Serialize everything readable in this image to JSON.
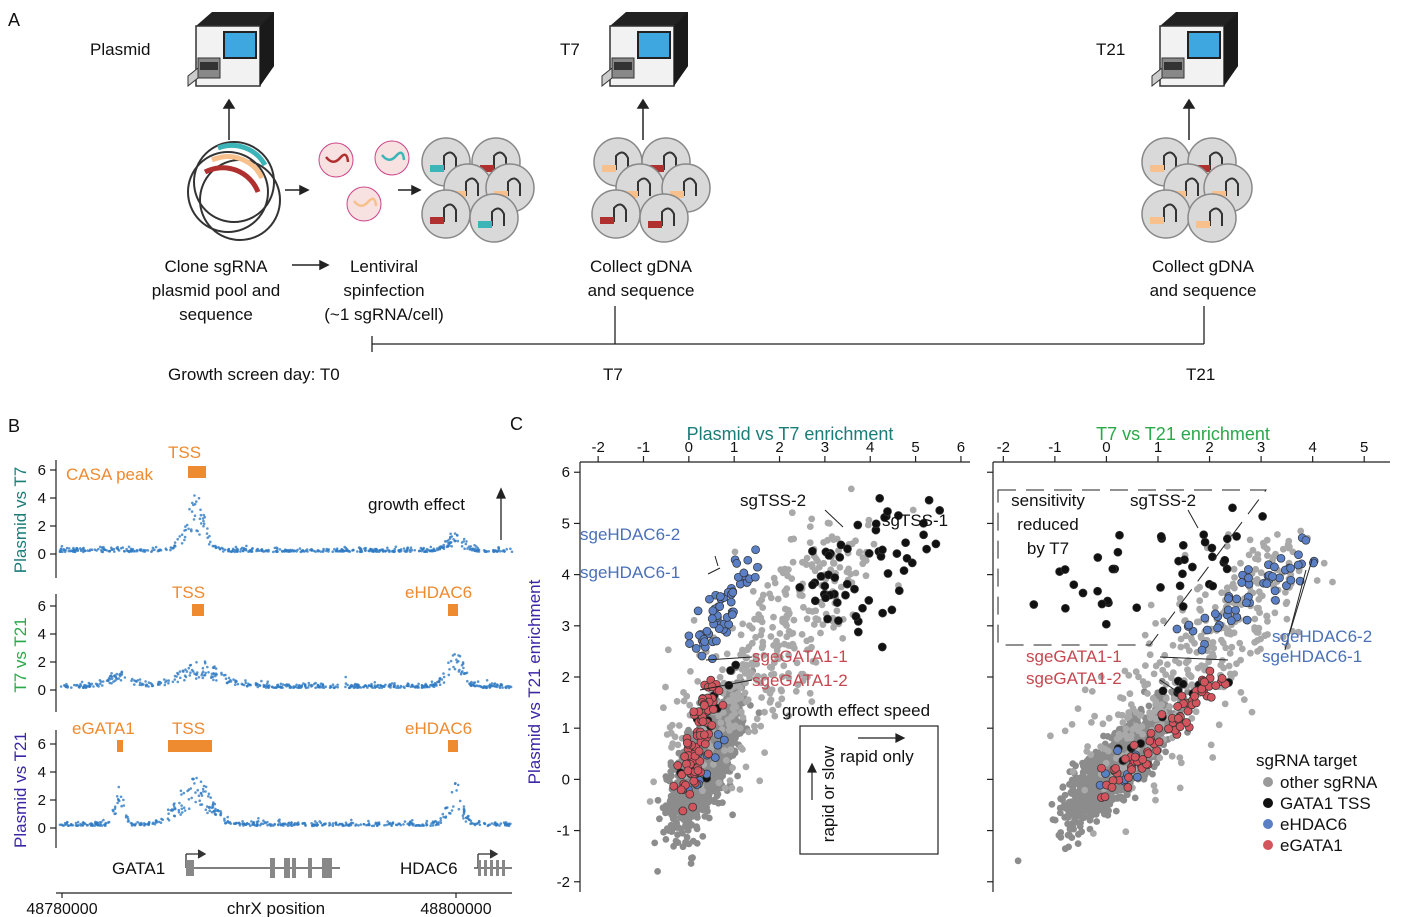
{
  "panel_a": {
    "label": "A",
    "stage_plasmid": "Plasmid",
    "stage_t7": "T7",
    "stage_t21": "T21",
    "step1": [
      "Clone sgRNA",
      "plasmid pool and",
      "sequence"
    ],
    "step2": [
      "Lentiviral",
      "spinfection",
      "(~1 sgRNA/cell)"
    ],
    "step3": [
      "Collect gDNA",
      "and sequence"
    ],
    "step4": [
      "Collect gDNA",
      "and sequence"
    ],
    "timeline_label": "Growth screen day: T0",
    "timeline_t7": "T7",
    "timeline_t21": "T21"
  },
  "panel_b": {
    "label": "B",
    "track1_ylabel": "Plasmid vs T7",
    "track2_ylabel": "T7 vs T21",
    "track3_ylabel": "Plasmid vs T21",
    "track1_peaks": [
      "TSS",
      "CASA peak"
    ],
    "track2_peaks": [
      "TSS",
      "eHDAC6"
    ],
    "track3_peaks": [
      "eGATA1",
      "TSS",
      "eHDAC6"
    ],
    "growth_effect": "growth effect",
    "yticks": [
      "0",
      "2",
      "4",
      "6"
    ],
    "gene1": "GATA1",
    "gene2": "HDAC6",
    "xtick_left": "48780000",
    "xtick_right": "48800000",
    "xlabel": "chrX position"
  },
  "panel_c": {
    "label": "C",
    "left_title": "Plasmid vs T7 enrichment",
    "right_title": "T7 vs T21 enrichment",
    "ylabel": "Plasmid vs T21 enrichment",
    "left_xticks": [
      "-2",
      "-1",
      "0",
      "1",
      "2",
      "3",
      "4",
      "5",
      "6"
    ],
    "right_xticks": [
      "-2",
      "-1",
      "0",
      "1",
      "2",
      "3",
      "4",
      "5"
    ],
    "yticks": [
      "6",
      "5",
      "4",
      "3",
      "2",
      "1",
      "0",
      "-1",
      "-2"
    ],
    "left_annotations": [
      "sgTSS-2",
      "sgTSS-1",
      "sgeHDAC6-2",
      "sgeHDAC6-1",
      "sgeGATA1-1",
      "sgeGATA1-2"
    ],
    "right_annotations": [
      "sgTSS-2",
      "sgeGATA1-1",
      "sgeGATA1-2",
      "sgeHDAC6-2",
      "sgeHDAC6-1"
    ],
    "sensitivity_note": [
      "sensitivity",
      "reduced",
      "by T7"
    ],
    "speed_title": "growth effect speed",
    "speed_rapid_only": "rapid only",
    "speed_rapid_or_slow": "rapid or slow",
    "legend_title": "sgRNA target",
    "legend": [
      {
        "label": "other sgRNA",
        "color": "#9a9a9a"
      },
      {
        "label": "GATA1 TSS",
        "color": "#111111"
      },
      {
        "label": "eHDAC6",
        "color": "#5a7fc4"
      },
      {
        "label": "eGATA1",
        "color": "#d2545c"
      }
    ]
  },
  "colors": {
    "orange": "#ee8a2f",
    "track_blue": "#2f7ac3",
    "teal": "#1a7d78",
    "green": "#2aa84a",
    "purple": "#3b27a5",
    "gray": "#8c8c8c",
    "black_dot": "#111111",
    "blue_dot": "#5a7fc4",
    "red_dot": "#d2545c"
  }
}
